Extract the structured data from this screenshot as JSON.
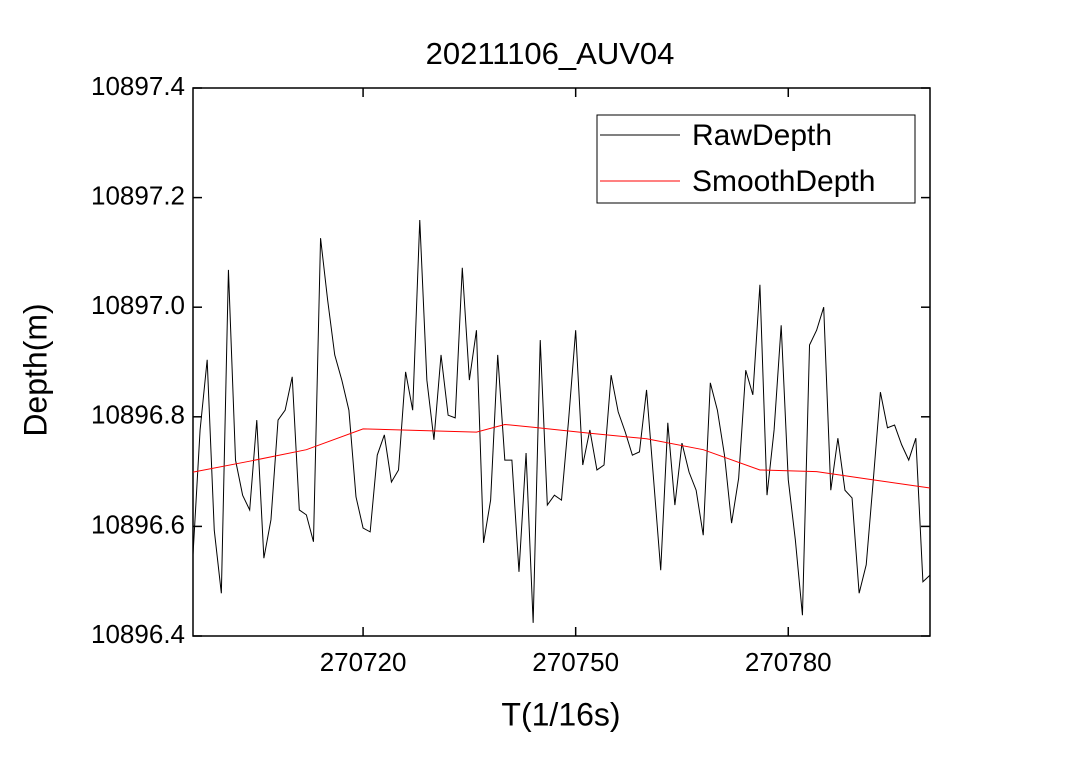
{
  "chart_data": {
    "type": "line",
    "title": "20211106_AUV04",
    "x_label": "T(1/16s)",
    "y_label": "Depth(m)",
    "xlim": [
      270696,
      270800
    ],
    "xticks": [
      270720,
      270750,
      270780
    ],
    "ylim": [
      10896.4,
      10897.4
    ],
    "yticks": [
      10896.4,
      10896.6,
      10896.8,
      {
        "value": 10897.0,
        "label": "10897.0"
      },
      10897.2,
      10897.4
    ],
    "legend": "top-right",
    "series": [
      {
        "name": "RawDepth",
        "color": "#000000",
        "x": [
          270696,
          270697,
          270698,
          270699,
          270700,
          270701,
          270702,
          270703,
          270704,
          270705,
          270706,
          270707,
          270708,
          270709,
          270710,
          270711,
          270712,
          270713,
          270714,
          270715,
          270716,
          270717,
          270718,
          270719,
          270720,
          270721,
          270722,
          270723,
          270724,
          270725,
          270726,
          270727,
          270728,
          270729,
          270730,
          270731,
          270732,
          270733,
          270734,
          270735,
          270736,
          270737,
          270738,
          270739,
          270740,
          270741,
          270742,
          270743,
          270744,
          270745,
          270746,
          270747,
          270748,
          270749,
          270750,
          270751,
          270752,
          270753,
          270754,
          270755,
          270756,
          270757,
          270758,
          270759,
          270760,
          270761,
          270762,
          270763,
          270764,
          270765,
          270766,
          270767,
          270768,
          270769,
          270770,
          270771,
          270772,
          270773,
          270774,
          270775,
          270776,
          270777,
          270778,
          270779,
          270780,
          270781,
          270782,
          270783,
          270784,
          270785,
          270786,
          270787,
          270788,
          270789,
          270790,
          270791,
          270792,
          270793,
          270794,
          270795,
          270796,
          270797,
          270798,
          270799,
          270800
        ],
        "values": [
          10896.548,
          10896.776,
          10896.904,
          10896.593,
          10896.478,
          10897.068,
          10896.721,
          10896.657,
          10896.63,
          10896.794,
          10896.542,
          10896.612,
          10896.794,
          10896.812,
          10896.873,
          10896.63,
          10896.621,
          10896.572,
          10897.126,
          10897.013,
          10896.913,
          10896.867,
          10896.812,
          10896.654,
          10896.597,
          10896.59,
          10896.73,
          10896.767,
          10896.681,
          10896.703,
          10896.882,
          10896.812,
          10897.159,
          10896.867,
          10896.758,
          10896.913,
          10896.803,
          10896.798,
          10897.072,
          10896.867,
          10896.958,
          10896.57,
          10896.648,
          10896.913,
          10896.721,
          10896.721,
          10896.517,
          10896.734,
          10896.424,
          10896.94,
          10896.639,
          10896.657,
          10896.648,
          10896.794,
          10896.958,
          10896.712,
          10896.776,
          10896.703,
          10896.712,
          10896.876,
          10896.809,
          10896.772,
          10896.73,
          10896.736,
          10896.849,
          10896.685,
          10896.52,
          10896.789,
          10896.639,
          10896.752,
          10896.699,
          10896.666,
          10896.584,
          10896.862,
          10896.812,
          10896.73,
          10896.606,
          10896.688,
          10896.885,
          10896.84,
          10897.041,
          10896.657,
          10896.776,
          10896.967,
          10896.685,
          10896.575,
          10896.438,
          10896.931,
          10896.958,
          10897.0,
          10896.666,
          10896.761,
          10896.666,
          10896.652,
          10896.478,
          10896.53,
          10896.685,
          10896.845,
          10896.78,
          10896.785,
          10896.749,
          10896.721,
          10896.761,
          10896.499,
          10896.511
        ]
      },
      {
        "name": "SmoothDepth",
        "color": "#ff0000",
        "x": [
          270696,
          270704,
          270712,
          270720,
          270728,
          270736,
          270740,
          270744,
          270752,
          270760,
          270768,
          270776,
          270784,
          270792,
          270800
        ],
        "values": [
          10896.699,
          10896.719,
          10896.74,
          10896.778,
          10896.775,
          10896.772,
          10896.786,
          10896.781,
          10896.77,
          10896.76,
          10896.74,
          10896.703,
          10896.7,
          10896.685,
          10896.67
        ]
      }
    ]
  }
}
